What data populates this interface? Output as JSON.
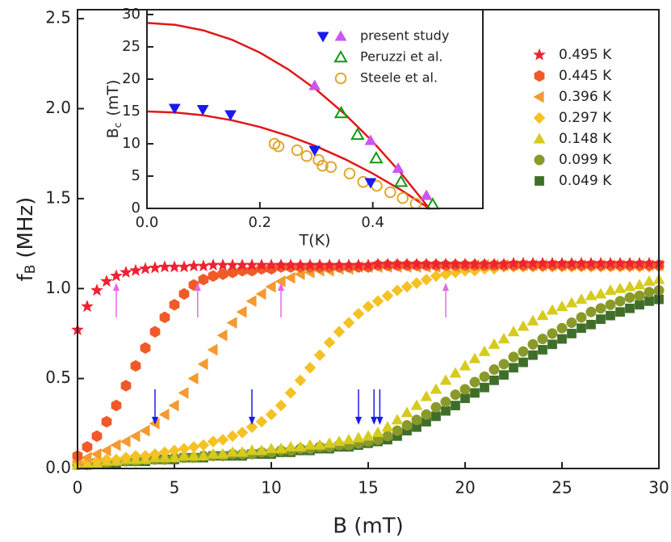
{
  "chart_data": [
    {
      "type": "scatter",
      "xlabel": "B (mT)",
      "ylabel": {
        "text": "f",
        "subscript": "B",
        "unit": "(MHz)"
      },
      "xlim": [
        0,
        30
      ],
      "ylim": [
        0,
        2.55
      ],
      "xticks": [
        0,
        5,
        10,
        15,
        20,
        25,
        30
      ],
      "yticks": [
        {
          "value": 0,
          "label": "0.0"
        },
        0.5,
        {
          "value": 1,
          "label": "1.0"
        },
        1.5,
        {
          "value": 2,
          "label": "2.0"
        },
        2.5
      ],
      "x": [
        0,
        0.5,
        1,
        1.5,
        2,
        2.5,
        3,
        3.5,
        4,
        4.5,
        5,
        5.5,
        6,
        6.5,
        7,
        7.5,
        8,
        8.5,
        9,
        9.5,
        10,
        10.5,
        11,
        11.5,
        12,
        12.5,
        13,
        13.5,
        14,
        14.5,
        15,
        15.5,
        16,
        16.5,
        17,
        17.5,
        18,
        18.5,
        19,
        19.5,
        20,
        20.5,
        21,
        21.5,
        22,
        22.5,
        23,
        23.5,
        24,
        24.5,
        25,
        25.5,
        26,
        26.5,
        27,
        27.5,
        28,
        28.5,
        29,
        29.5,
        30
      ],
      "series": [
        {
          "name": "0.495 K",
          "color": "#ee2233",
          "marker": "star",
          "values": [
            0.77,
            0.9,
            0.99,
            1.04,
            1.07,
            1.09,
            1.1,
            1.11,
            1.115,
            1.12,
            1.12,
            1.12,
            1.125,
            1.125,
            1.13,
            1.13,
            1.13,
            1.13,
            1.13,
            1.13,
            1.13,
            1.13,
            1.13,
            1.13,
            1.13,
            1.13,
            1.13,
            1.13,
            1.13,
            1.13,
            1.13,
            1.135,
            1.135,
            1.135,
            1.135,
            1.135,
            1.135,
            1.135,
            1.135,
            1.135,
            1.135,
            1.135,
            1.135,
            1.135,
            1.135,
            1.14,
            1.14,
            1.14,
            1.14,
            1.14,
            1.14,
            1.14,
            1.14,
            1.14,
            1.14,
            1.14,
            1.14,
            1.14,
            1.14,
            1.14,
            1.14
          ]
        },
        {
          "name": "0.445 K",
          "color": "#f05a28",
          "marker": "hexagon",
          "values": [
            0.07,
            0.12,
            0.18,
            0.26,
            0.35,
            0.46,
            0.57,
            0.67,
            0.76,
            0.84,
            0.91,
            0.97,
            1.02,
            1.05,
            1.07,
            1.08,
            1.09,
            1.1,
            1.1,
            1.11,
            1.11,
            1.12,
            1.12,
            1.12,
            1.12,
            1.12,
            1.12,
            1.12,
            1.12,
            1.12,
            1.12,
            1.13,
            1.13,
            1.13,
            1.13,
            1.13,
            1.13,
            1.13,
            1.13,
            1.13,
            1.13,
            1.13,
            1.13,
            1.13,
            1.13,
            1.13,
            1.13,
            1.13,
            1.13,
            1.13,
            1.13,
            1.13,
            1.13,
            1.13,
            1.13,
            1.13,
            1.13,
            1.13,
            1.13,
            1.13,
            1.13
          ]
        },
        {
          "name": "0.396 K",
          "color": "#f39a30",
          "marker": "triangle-left",
          "values": [
            0.04,
            0.06,
            0.08,
            0.1,
            0.13,
            0.15,
            0.18,
            0.21,
            0.25,
            0.3,
            0.35,
            0.42,
            0.5,
            0.58,
            0.66,
            0.74,
            0.81,
            0.87,
            0.93,
            0.97,
            1.01,
            1.04,
            1.06,
            1.08,
            1.09,
            1.1,
            1.1,
            1.11,
            1.11,
            1.12,
            1.12,
            1.12,
            1.12,
            1.12,
            1.12,
            1.12,
            1.12,
            1.12,
            1.12,
            1.12,
            1.12,
            1.13,
            1.13,
            1.13,
            1.13,
            1.13,
            1.13,
            1.13,
            1.13,
            1.13,
            1.13,
            1.13,
            1.13,
            1.13,
            1.13,
            1.13,
            1.13,
            1.13,
            1.13,
            1.13,
            1.13
          ]
        },
        {
          "name": "0.297 K",
          "color": "#f5c225",
          "marker": "diamond",
          "values": [
            0.03,
            0.04,
            0.04,
            0.05,
            0.05,
            0.06,
            0.07,
            0.07,
            0.08,
            0.09,
            0.1,
            0.11,
            0.12,
            0.13,
            0.15,
            0.16,
            0.18,
            0.2,
            0.23,
            0.26,
            0.3,
            0.35,
            0.42,
            0.49,
            0.56,
            0.63,
            0.7,
            0.76,
            0.81,
            0.86,
            0.9,
            0.93,
            0.96,
            0.99,
            1.01,
            1.03,
            1.05,
            1.07,
            1.08,
            1.09,
            1.1,
            1.1,
            1.11,
            1.11,
            1.12,
            1.12,
            1.12,
            1.12,
            1.12,
            1.12,
            1.12,
            1.12,
            1.12,
            1.12,
            1.12,
            1.12,
            1.12,
            1.12,
            1.12,
            1.12,
            1.12
          ]
        },
        {
          "name": "0.148 K",
          "color": "#d6cb1e",
          "marker": "triangle-up",
          "values": [
            0.02,
            0.03,
            0.03,
            0.04,
            0.04,
            0.05,
            0.05,
            0.05,
            0.06,
            0.06,
            0.06,
            0.07,
            0.07,
            0.07,
            0.08,
            0.08,
            0.09,
            0.09,
            0.1,
            0.1,
            0.11,
            0.11,
            0.12,
            0.12,
            0.13,
            0.13,
            0.14,
            0.15,
            0.16,
            0.17,
            0.18,
            0.2,
            0.23,
            0.27,
            0.31,
            0.35,
            0.4,
            0.44,
            0.49,
            0.53,
            0.57,
            0.61,
            0.65,
            0.69,
            0.72,
            0.76,
            0.79,
            0.82,
            0.85,
            0.88,
            0.9,
            0.92,
            0.94,
            0.96,
            0.97,
            0.99,
            1.0,
            1.01,
            1.02,
            1.04,
            1.05
          ]
        },
        {
          "name": "0.099 K",
          "color": "#8a9a2a",
          "marker": "circle",
          "values": [
            0.02,
            0.02,
            0.03,
            0.03,
            0.04,
            0.04,
            0.04,
            0.05,
            0.05,
            0.05,
            0.06,
            0.06,
            0.06,
            0.07,
            0.07,
            0.07,
            0.08,
            0.08,
            0.08,
            0.09,
            0.09,
            0.1,
            0.1,
            0.11,
            0.11,
            0.12,
            0.12,
            0.13,
            0.13,
            0.14,
            0.15,
            0.16,
            0.18,
            0.21,
            0.24,
            0.27,
            0.3,
            0.34,
            0.37,
            0.41,
            0.44,
            0.48,
            0.51,
            0.55,
            0.58,
            0.62,
            0.65,
            0.69,
            0.72,
            0.75,
            0.78,
            0.81,
            0.84,
            0.87,
            0.89,
            0.91,
            0.93,
            0.95,
            0.96,
            0.98,
            0.99
          ]
        },
        {
          "name": "0.049 K",
          "color": "#3f6e2a",
          "marker": "square",
          "values": [
            0.02,
            0.02,
            0.03,
            0.03,
            0.03,
            0.04,
            0.04,
            0.04,
            0.05,
            0.05,
            0.05,
            0.06,
            0.06,
            0.06,
            0.07,
            0.07,
            0.07,
            0.07,
            0.08,
            0.08,
            0.08,
            0.09,
            0.09,
            0.1,
            0.1,
            0.11,
            0.11,
            0.12,
            0.12,
            0.13,
            0.14,
            0.15,
            0.16,
            0.18,
            0.21,
            0.23,
            0.26,
            0.29,
            0.32,
            0.35,
            0.39,
            0.42,
            0.45,
            0.49,
            0.52,
            0.56,
            0.59,
            0.63,
            0.66,
            0.69,
            0.72,
            0.75,
            0.78,
            0.8,
            0.83,
            0.85,
            0.87,
            0.89,
            0.91,
            0.93,
            0.94
          ]
        }
      ],
      "arrows": [
        {
          "direction": "up",
          "color": "#e866e8",
          "x": [
            2,
            6.2,
            10.5,
            19
          ]
        },
        {
          "direction": "down",
          "color": "#1a1aee",
          "x": [
            4,
            9,
            14.5,
            15.3,
            15.6
          ]
        }
      ]
    },
    {
      "type": "scatter",
      "xlabel": "T(K)",
      "ylabel": {
        "text": "B",
        "subscript": "c",
        "unit": "(mT)"
      },
      "xlim": [
        0,
        0.595
      ],
      "ylim": [
        0,
        30.75
      ],
      "xticks": [
        {
          "value": 0,
          "label": "0.0"
        },
        0.2,
        0.4
      ],
      "yticks": [
        0,
        5,
        10,
        15,
        20,
        25,
        30
      ],
      "series": [
        {
          "name": "present study",
          "groups": [
            {
              "color": "#1a1aee",
              "marker": "triangle-down",
              "x": [
                0.049,
                0.099,
                0.148,
                0.297,
                0.396
              ],
              "values": [
                15.5,
                15.3,
                14.5,
                9,
                4
              ]
            },
            {
              "color": "#cc55ee",
              "marker": "triangle-up",
              "x": [
                0.297,
                0.396,
                0.445,
                0.495
              ],
              "values": [
                19,
                10.5,
                6.2,
                2
              ]
            }
          ]
        },
        {
          "name": "Peruzzi et al.",
          "color": "#119911",
          "marker": "triangle-up",
          "filled": false,
          "x": [
            0.344,
            0.373,
            0.406,
            0.45,
            0.506
          ],
          "values": [
            14.75,
            11.4,
            7.75,
            4.1,
            0.6
          ]
        },
        {
          "name": "Steele et al.",
          "color": "#e0a830",
          "marker": "circle",
          "filled": false,
          "x": [
            0.226,
            0.233,
            0.266,
            0.283,
            0.304,
            0.311,
            0.326,
            0.359,
            0.383,
            0.407,
            0.431,
            0.453,
            0.476
          ],
          "values": [
            10,
            9.6,
            9,
            8.1,
            7.5,
            6.6,
            6.4,
            5.4,
            4.1,
            3.5,
            2.5,
            1.6,
            0.75
          ]
        }
      ],
      "fits": [
        {
          "color": "#e01818",
          "x": [
            0,
            0.05,
            0.1,
            0.15,
            0.2,
            0.25,
            0.3,
            0.35,
            0.4,
            0.45,
            0.5
          ],
          "values": [
            28.7,
            28.41,
            27.55,
            26.12,
            24.11,
            21.53,
            18.37,
            14.64,
            10.33,
            5.45,
            0
          ]
        },
        {
          "color": "#e01818",
          "x": [
            0,
            0.05,
            0.1,
            0.15,
            0.2,
            0.25,
            0.3,
            0.35,
            0.4,
            0.45,
            0.5
          ],
          "values": [
            15,
            14.85,
            14.4,
            13.65,
            12.6,
            11.25,
            9.6,
            7.65,
            5.4,
            2.85,
            0
          ]
        }
      ]
    }
  ]
}
